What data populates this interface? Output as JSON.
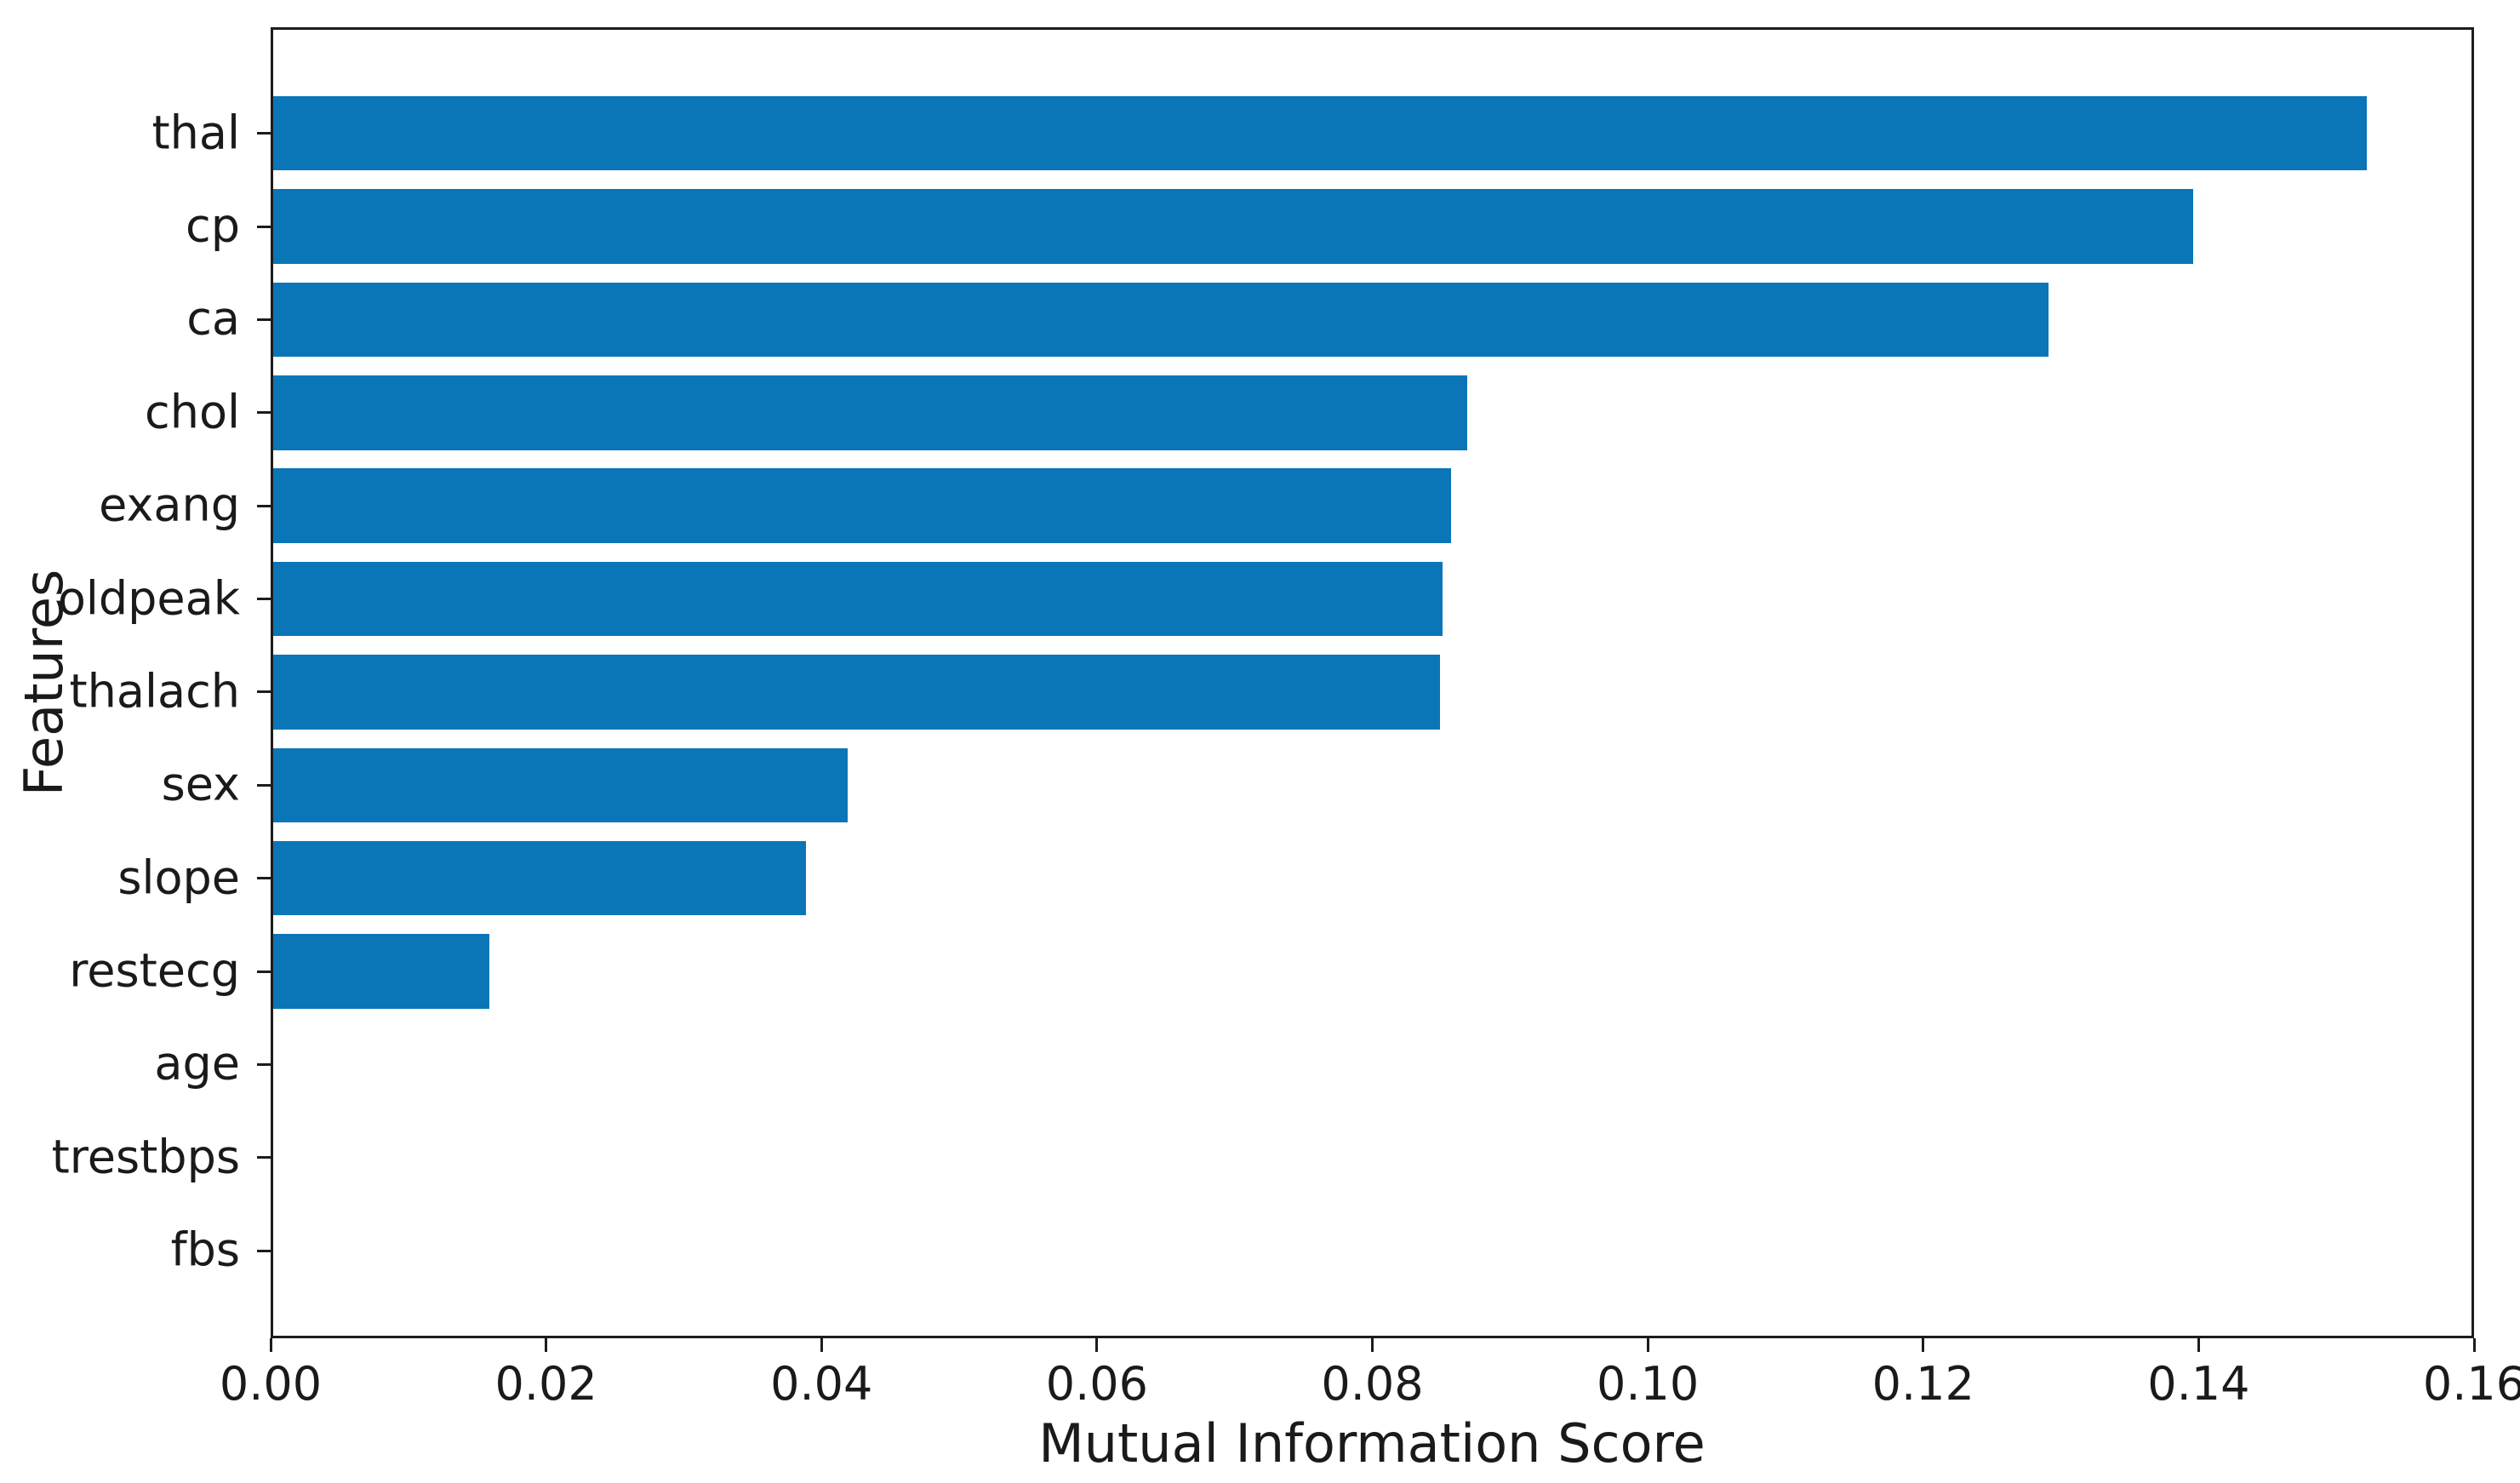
{
  "figure": {
    "background": "#ffffff",
    "bar_color": "#0a76b8",
    "spine_color": "#1c1c1c",
    "text_color": "#1a1a1a"
  },
  "chart_data": {
    "type": "bar",
    "orientation": "horizontal",
    "title": "",
    "xlabel": "Mutual Information Score",
    "ylabel": "Features",
    "categories": [
      "thal",
      "cp",
      "ca",
      "chol",
      "exang",
      "oldpeak",
      "thalach",
      "sex",
      "slope",
      "restecg",
      "age",
      "trestbps",
      "fbs"
    ],
    "values": [
      0.1522,
      0.1396,
      0.1291,
      0.0869,
      0.0857,
      0.0851,
      0.0849,
      0.0419,
      0.0389,
      0.0159,
      0.0,
      0.0,
      0.0
    ],
    "xlim": [
      0.0,
      0.16
    ],
    "xticks": [
      0.0,
      0.02,
      0.04,
      0.06,
      0.08,
      0.1,
      0.12,
      0.14,
      0.16
    ],
    "xtick_labels": [
      "0.00",
      "0.02",
      "0.04",
      "0.06",
      "0.08",
      "0.10",
      "0.12",
      "0.14",
      "0.16"
    ],
    "grid": false,
    "legend": null,
    "bar_color": "#0a76b8"
  }
}
